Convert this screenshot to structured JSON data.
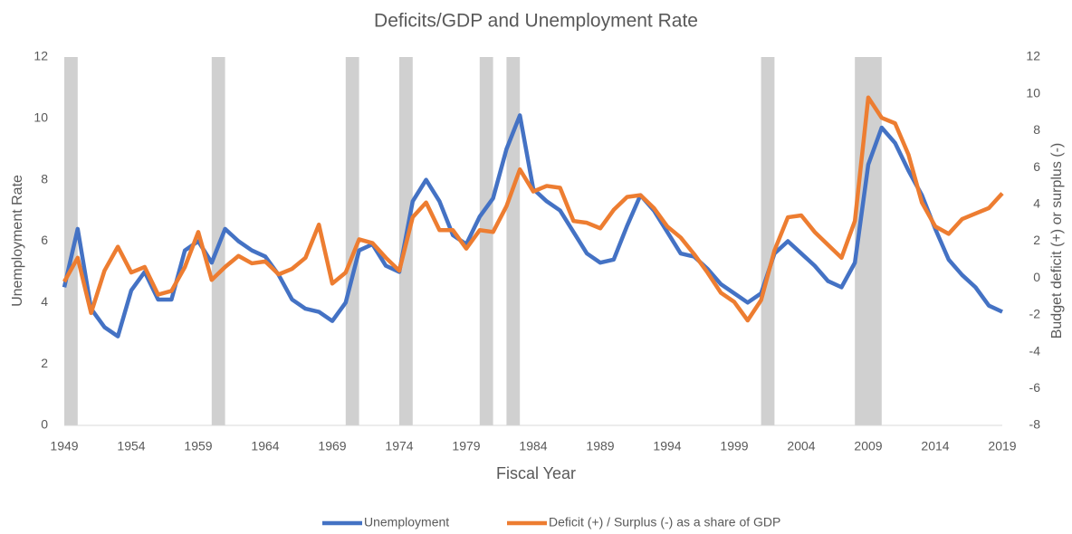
{
  "chart_data": {
    "type": "line",
    "title": "Deficits/GDP and Unemployment Rate",
    "xlabel": "Fiscal Year",
    "ylabel": "Unemployment Rate",
    "y2label": "Budget  deficit (+) or surplus (-)",
    "x": [
      1949,
      1950,
      1951,
      1952,
      1953,
      1954,
      1955,
      1956,
      1957,
      1958,
      1959,
      1960,
      1961,
      1962,
      1963,
      1964,
      1965,
      1966,
      1967,
      1968,
      1969,
      1970,
      1971,
      1972,
      1973,
      1974,
      1975,
      1976,
      1977,
      1978,
      1979,
      1980,
      1981,
      1982,
      1983,
      1984,
      1985,
      1986,
      1987,
      1988,
      1989,
      1990,
      1991,
      1992,
      1993,
      1994,
      1995,
      1996,
      1997,
      1998,
      1999,
      2000,
      2001,
      2002,
      2003,
      2004,
      2005,
      2006,
      2007,
      2008,
      2009,
      2010,
      2011,
      2012,
      2013,
      2014,
      2015,
      2016,
      2017,
      2018,
      2019
    ],
    "series": [
      {
        "name": "Unemployment",
        "color": "#4472c4",
        "axis": "y",
        "values": [
          4.5,
          6.4,
          3.8,
          3.2,
          2.9,
          4.4,
          5.0,
          4.1,
          4.1,
          5.7,
          6.0,
          5.3,
          6.4,
          6.0,
          5.7,
          5.5,
          4.9,
          4.1,
          3.8,
          3.7,
          3.4,
          4.0,
          5.7,
          5.9,
          5.2,
          5.0,
          7.3,
          8.0,
          7.3,
          6.2,
          5.9,
          6.8,
          7.4,
          9.0,
          10.1,
          7.7,
          7.3,
          7.0,
          6.3,
          5.6,
          5.3,
          5.4,
          6.5,
          7.5,
          7.0,
          6.3,
          5.6,
          5.5,
          5.1,
          4.6,
          4.3,
          4.0,
          4.3,
          5.6,
          6.0,
          5.6,
          5.2,
          4.7,
          4.5,
          5.3,
          8.5,
          9.7,
          9.2,
          8.3,
          7.5,
          6.4,
          5.4,
          4.9,
          4.5,
          3.9,
          3.7
        ]
      },
      {
        "name": "Deficit (+) / Surplus (-) as a share of GDP",
        "color": "#ed7d31",
        "axis": "y2",
        "values": [
          -0.2,
          1.1,
          -1.9,
          0.4,
          1.7,
          0.3,
          0.6,
          -0.9,
          -0.7,
          0.6,
          2.5,
          -0.1,
          0.6,
          1.2,
          0.8,
          0.9,
          0.2,
          0.5,
          1.1,
          2.9,
          -0.3,
          0.3,
          2.1,
          1.9,
          1.1,
          0.4,
          3.3,
          4.1,
          2.6,
          2.6,
          1.6,
          2.6,
          2.5,
          3.9,
          5.9,
          4.7,
          5.0,
          4.9,
          3.1,
          3.0,
          2.7,
          3.7,
          4.4,
          4.5,
          3.8,
          2.8,
          2.2,
          1.3,
          0.3,
          -0.8,
          -1.3,
          -2.3,
          -1.2,
          1.5,
          3.3,
          3.4,
          2.5,
          1.8,
          1.1,
          3.1,
          9.8,
          8.7,
          8.4,
          6.7,
          4.1,
          2.8,
          2.4,
          3.2,
          3.5,
          3.8,
          4.6
        ]
      }
    ],
    "shaded_periods": [
      [
        1949,
        1950
      ],
      [
        1960,
        1961
      ],
      [
        1970,
        1971
      ],
      [
        1974,
        1975
      ],
      [
        1980,
        1981
      ],
      [
        1982,
        1983
      ],
      [
        2001,
        2002
      ],
      [
        2008,
        2010
      ]
    ],
    "shade_color": "#d0d0d0",
    "xlim": [
      1949,
      2019
    ],
    "xticks": [
      1949,
      1954,
      1959,
      1964,
      1969,
      1974,
      1979,
      1984,
      1989,
      1994,
      1999,
      2004,
      2009,
      2014,
      2019
    ],
    "ylim": [
      0,
      12
    ],
    "yticks": [
      0,
      2,
      4,
      6,
      8,
      10,
      12
    ],
    "y2lim": [
      -8,
      12
    ],
    "y2ticks": [
      -8,
      -6,
      -4,
      -2,
      0,
      2,
      4,
      6,
      8,
      10,
      12
    ],
    "legend": "bottom"
  }
}
